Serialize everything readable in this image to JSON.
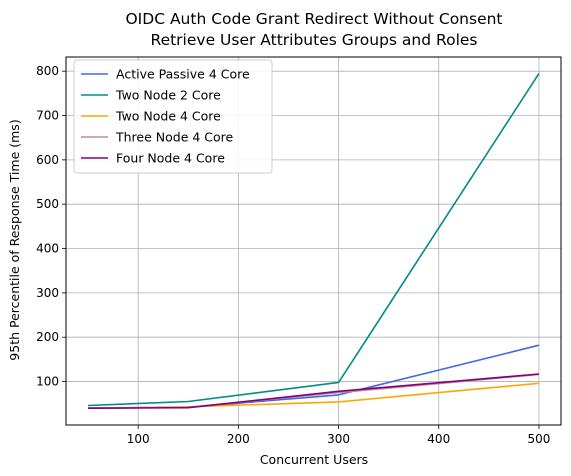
{
  "chart_data": {
    "type": "line",
    "title_lines": [
      "OIDC Auth Code Grant Redirect Without Consent",
      "Retrieve User Attributes Groups and Roles"
    ],
    "xlabel": "Concurrent Users",
    "ylabel": "95th Percentile of Response Time (ms)",
    "xlim": [
      28,
      522
    ],
    "ylim": [
      2,
      832
    ],
    "xticks": [
      100,
      200,
      300,
      400,
      500
    ],
    "yticks": [
      100,
      200,
      300,
      400,
      500,
      600,
      700,
      800
    ],
    "grid": true,
    "legend_position": "top-left",
    "x": [
      50,
      150,
      300,
      500
    ],
    "series": [
      {
        "name": "Active Passive 4 Core",
        "color": "#4169e1",
        "values": [
          40,
          42,
          70,
          182
        ]
      },
      {
        "name": "Two Node 2 Core",
        "color": "#008b8b",
        "values": [
          46,
          55,
          98,
          795
        ]
      },
      {
        "name": "Two Node 4 Core",
        "color": "#ffa500",
        "values": [
          40,
          43,
          54,
          96
        ]
      },
      {
        "name": "Three Node 4 Core",
        "color": "#bc8f8f",
        "values": [
          40,
          42,
          75,
          116
        ]
      },
      {
        "name": "Four Node 4 Core",
        "color": "#800080",
        "values": [
          40,
          41,
          78,
          117
        ]
      }
    ]
  }
}
